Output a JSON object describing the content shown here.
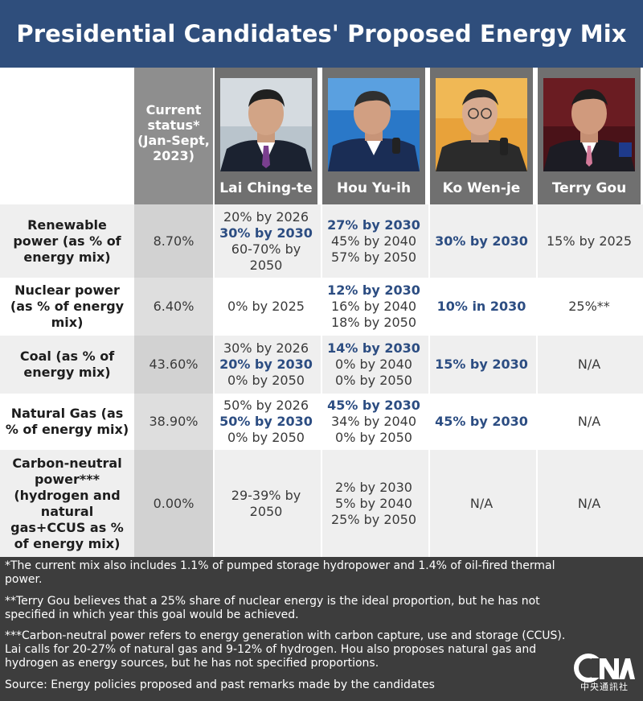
{
  "title": "Presidential Candidates' Proposed Energy Mix",
  "current_status_header": "Current status* (Jan-Sept, 2023)",
  "candidates": [
    "Lai Ching-te",
    "Hou Yu-ih",
    "Ko Wen-je",
    "Terry Gou"
  ],
  "rows": [
    {
      "label": "Renewable power (as % of energy mix)",
      "current": "8.70%",
      "lai": [
        {
          "t": "20% by 2026",
          "hl": false
        },
        {
          "t": "30% by 2030",
          "hl": true
        },
        {
          "t": "60-70% by",
          "hl": false
        },
        {
          "t": "2050",
          "hl": false
        }
      ],
      "hou": [
        {
          "t": "27% by 2030",
          "hl": true
        },
        {
          "t": "45% by 2040",
          "hl": false
        },
        {
          "t": "57% by 2050",
          "hl": false
        }
      ],
      "ko": [
        {
          "t": "30% by 2030",
          "hl": true
        }
      ],
      "gou": [
        {
          "t": "15% by 2025",
          "hl": false
        }
      ]
    },
    {
      "label": "Nuclear power (as % of energy mix)",
      "current": "6.40%",
      "lai": [
        {
          "t": "0% by 2025",
          "hl": false
        }
      ],
      "hou": [
        {
          "t": "12% by 2030",
          "hl": true
        },
        {
          "t": "16% by 2040",
          "hl": false
        },
        {
          "t": "18% by 2050",
          "hl": false
        }
      ],
      "ko": [
        {
          "t": "10% in 2030",
          "hl": true
        }
      ],
      "gou": [
        {
          "t": "25%**",
          "hl": false
        }
      ]
    },
    {
      "label": "Coal (as % of energy mix)",
      "current": "43.60%",
      "lai": [
        {
          "t": "30% by 2026",
          "hl": false
        },
        {
          "t": "20% by 2030",
          "hl": true
        },
        {
          "t": "0% by 2050",
          "hl": false
        }
      ],
      "hou": [
        {
          "t": "14% by 2030",
          "hl": true
        },
        {
          "t": "0% by 2040",
          "hl": false
        },
        {
          "t": "0% by 2050",
          "hl": false
        }
      ],
      "ko": [
        {
          "t": "15% by 2030",
          "hl": true
        }
      ],
      "gou": [
        {
          "t": "N/A",
          "hl": false
        }
      ]
    },
    {
      "label": "Natural Gas (as % of energy mix)",
      "current": "38.90%",
      "lai": [
        {
          "t": "50% by 2026",
          "hl": false
        },
        {
          "t": "50% by 2030",
          "hl": true
        },
        {
          "t": "0% by 2050",
          "hl": false
        }
      ],
      "hou": [
        {
          "t": "45% by 2030",
          "hl": true
        },
        {
          "t": "34% by 2040",
          "hl": false
        },
        {
          "t": "0% by 2050",
          "hl": false
        }
      ],
      "ko": [
        {
          "t": "45% by 2030",
          "hl": true
        }
      ],
      "gou": [
        {
          "t": "N/A",
          "hl": false
        }
      ]
    },
    {
      "label": "Carbon-neutral power*** (hydrogen and natural gas+CCUS as % of energy mix)",
      "current": "0.00%",
      "lai": [
        {
          "t": "29-39% by",
          "hl": false
        },
        {
          "t": "2050",
          "hl": false
        }
      ],
      "hou": [
        {
          "t": "2% by 2030",
          "hl": false
        },
        {
          "t": "5% by 2040",
          "hl": false
        },
        {
          "t": "25% by 2050",
          "hl": false
        }
      ],
      "ko": [
        {
          "t": "N/A",
          "hl": false
        }
      ],
      "gou": [
        {
          "t": "N/A",
          "hl": false
        }
      ]
    }
  ],
  "footnotes": [
    "*The current mix also includes 1.1% of pumped storage hydropower and 1.4% of oil-fired thermal power.",
    "**Terry Gou believes that a 25% share of nuclear energy is the ideal proportion, but he has not specified in which year this goal would be achieved.",
    "***Carbon-neutral power refers to energy generation with carbon capture, use and storage (CCUS). Lai calls for 20-27% of natural gas and 9-12% of hydrogen. Hou also proposes natural gas and hydrogen as energy sources, but he has not specified proportions.",
    "Source: Energy policies proposed and past remarks made by the candidates"
  ],
  "logo": {
    "mark": "CNA",
    "text": "中央通訊社"
  },
  "colors": {
    "title_bg": "#2f4e7c",
    "highlight": "#2c4d82",
    "footer_bg": "#3d3d3d",
    "header_bg": "#707070",
    "current_header_bg": "#8e8e8e"
  }
}
